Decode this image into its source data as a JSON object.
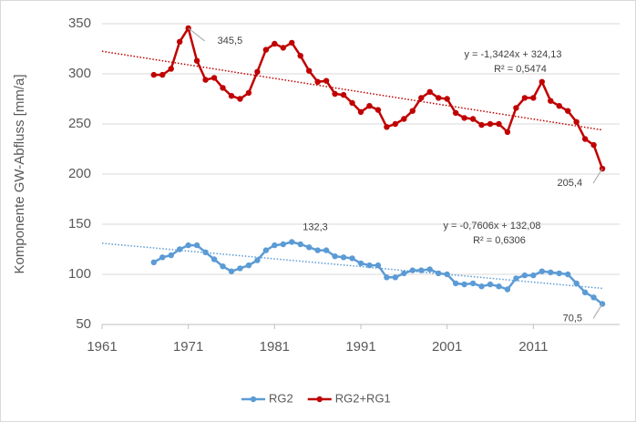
{
  "chart_data": {
    "type": "line",
    "y_label": "Komponente GW-Abfluss [mm/a]",
    "x": [
      1967,
      1968,
      1969,
      1970,
      1971,
      1972,
      1973,
      1974,
      1975,
      1976,
      1977,
      1978,
      1979,
      1980,
      1981,
      1982,
      1983,
      1984,
      1985,
      1986,
      1987,
      1988,
      1989,
      1990,
      1991,
      1992,
      1993,
      1994,
      1995,
      1996,
      1997,
      1998,
      1999,
      2000,
      2001,
      2002,
      2003,
      2004,
      2005,
      2006,
      2007,
      2008,
      2009,
      2010,
      2011,
      2012,
      2013,
      2014,
      2015,
      2016,
      2017,
      2018,
      2019
    ],
    "series": [
      {
        "name": "RG2",
        "color": "#5b9bd5",
        "values": [
          112,
          117,
          119,
          125,
          129,
          129,
          122,
          115,
          108,
          103,
          106,
          109,
          114,
          124,
          129,
          130,
          132.3,
          130,
          127,
          124,
          124,
          118,
          117,
          116,
          111,
          109,
          109,
          97,
          97,
          101,
          104,
          104,
          105,
          101,
          100,
          91,
          90,
          91,
          88,
          90,
          88,
          85,
          96,
          99,
          99,
          103,
          102,
          101,
          100,
          91,
          82,
          77,
          70.5
        ],
        "value_labels": [
          null,
          null,
          null,
          null,
          null,
          null,
          null,
          null,
          null,
          null,
          null,
          null,
          null,
          null,
          null,
          null,
          "132,3",
          null,
          null,
          null,
          null,
          null,
          null,
          null,
          null,
          null,
          null,
          null,
          null,
          null,
          null,
          null,
          null,
          null,
          null,
          null,
          null,
          null,
          null,
          null,
          null,
          null,
          null,
          null,
          null,
          null,
          null,
          null,
          null,
          null,
          null,
          null,
          "70,5"
        ]
      },
      {
        "name": "RG2+RG1",
        "color": "#c00000",
        "values": [
          299,
          299,
          305,
          332,
          345.5,
          313,
          294,
          296,
          286,
          278,
          275,
          281,
          302,
          324,
          330,
          326,
          331,
          318,
          303,
          292,
          293,
          280,
          279,
          271,
          262,
          268,
          264,
          247,
          250,
          255,
          263,
          276,
          282,
          276,
          275,
          261,
          256,
          255,
          249,
          250,
          250,
          242,
          266,
          276,
          276,
          292,
          273,
          268,
          263,
          252,
          235,
          229,
          205.4
        ],
        "value_labels": [
          null,
          null,
          null,
          null,
          "345,5",
          null,
          null,
          null,
          null,
          null,
          null,
          null,
          null,
          null,
          null,
          null,
          null,
          null,
          null,
          null,
          null,
          null,
          null,
          null,
          null,
          null,
          null,
          null,
          null,
          null,
          null,
          null,
          null,
          null,
          null,
          null,
          null,
          null,
          null,
          null,
          null,
          null,
          null,
          null,
          null,
          null,
          null,
          null,
          null,
          null,
          null,
          null,
          "205,4"
        ]
      }
    ],
    "trendlines": [
      {
        "color": "#5b9bd5",
        "x": [
          1961,
          2019
        ],
        "values": [
          131,
          86
        ],
        "equation": "y = -0,7606x + 132,08",
        "r2": "R² = 0,6306"
      },
      {
        "color": "#c00000",
        "x": [
          1961,
          2019
        ],
        "values": [
          322.5,
          244
        ],
        "equation": "y = -1,3424x + 324,13",
        "r2": "R² = 0,5474"
      }
    ],
    "xlim": [
      1961,
      2021
    ],
    "xticks": [
      1961,
      1971,
      1981,
      1991,
      2001,
      2011
    ],
    "ylim": [
      50,
      350
    ],
    "yticks": [
      50,
      100,
      150,
      200,
      250,
      300,
      350
    ],
    "grid": true,
    "legend": "bottom"
  }
}
